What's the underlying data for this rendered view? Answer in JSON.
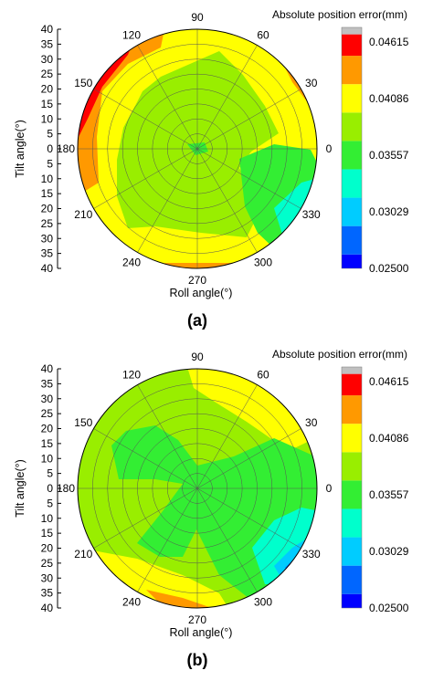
{
  "chart_data": [
    {
      "type": "heatmap",
      "subtype": "polar-contour",
      "panel_label": "(a)",
      "legend_title": "Absolute position error(mm)",
      "xlabel": "Roll angle(°)",
      "ylabel": "Tilt angle(°)",
      "angular_ticks": [
        "90",
        "60",
        "30",
        "0",
        "330",
        "300",
        "270",
        "240",
        "210",
        "180",
        "150",
        "120"
      ],
      "radial_ticks_top": [
        "40",
        "35",
        "30",
        "25",
        "20",
        "15",
        "10",
        "5",
        "0"
      ],
      "radial_ticks_bottom": [
        "5",
        "10",
        "15",
        "20",
        "25",
        "30",
        "35",
        "40"
      ],
      "rlim": [
        0,
        40
      ],
      "colorbar": {
        "range": [
          0.025,
          0.0475
        ],
        "tick_labels": [
          "0.04615",
          "0.04086",
          "0.03557",
          "0.03029",
          "0.02500"
        ],
        "levels": [
          {
            "value": 0.025,
            "color": "#0000ff"
          },
          {
            "value": 0.0276,
            "color": "#0066ff"
          },
          {
            "value": 0.0303,
            "color": "#00ccff"
          },
          {
            "value": 0.0329,
            "color": "#00ffcc"
          },
          {
            "value": 0.0356,
            "color": "#33ee33"
          },
          {
            "value": 0.0382,
            "color": "#99ee00"
          },
          {
            "value": 0.0409,
            "color": "#ffff00"
          },
          {
            "value": 0.0435,
            "color": "#ff9900"
          },
          {
            "value": 0.0462,
            "color": "#ff0000"
          },
          {
            "value": 0.0475,
            "color": "#c0c0c0"
          }
        ]
      }
    },
    {
      "type": "heatmap",
      "subtype": "polar-contour",
      "panel_label": "(b)",
      "legend_title": "Absolute position error(mm)",
      "xlabel": "Roll angle(°)",
      "ylabel": "Tilt angle(°)",
      "angular_ticks": [
        "90",
        "60",
        "30",
        "0",
        "330",
        "300",
        "270",
        "240",
        "210",
        "180",
        "150",
        "120"
      ],
      "radial_ticks_top": [
        "40",
        "35",
        "30",
        "25",
        "20",
        "15",
        "10",
        "5",
        "0"
      ],
      "radial_ticks_bottom": [
        "5",
        "10",
        "15",
        "20",
        "25",
        "30",
        "35",
        "40"
      ],
      "rlim": [
        0,
        40
      ],
      "colorbar": {
        "range": [
          0.025,
          0.0475
        ],
        "tick_labels": [
          "0.04615",
          "0.04086",
          "0.03557",
          "0.03029",
          "0.02500"
        ],
        "levels": [
          {
            "value": 0.025,
            "color": "#0000ff"
          },
          {
            "value": 0.0276,
            "color": "#0066ff"
          },
          {
            "value": 0.0303,
            "color": "#00ccff"
          },
          {
            "value": 0.0329,
            "color": "#00ffcc"
          },
          {
            "value": 0.0356,
            "color": "#33ee33"
          },
          {
            "value": 0.0382,
            "color": "#99ee00"
          },
          {
            "value": 0.0409,
            "color": "#ffff00"
          },
          {
            "value": 0.0435,
            "color": "#ff9900"
          },
          {
            "value": 0.0462,
            "color": "#ff0000"
          },
          {
            "value": 0.0475,
            "color": "#c0c0c0"
          }
        ]
      }
    }
  ]
}
